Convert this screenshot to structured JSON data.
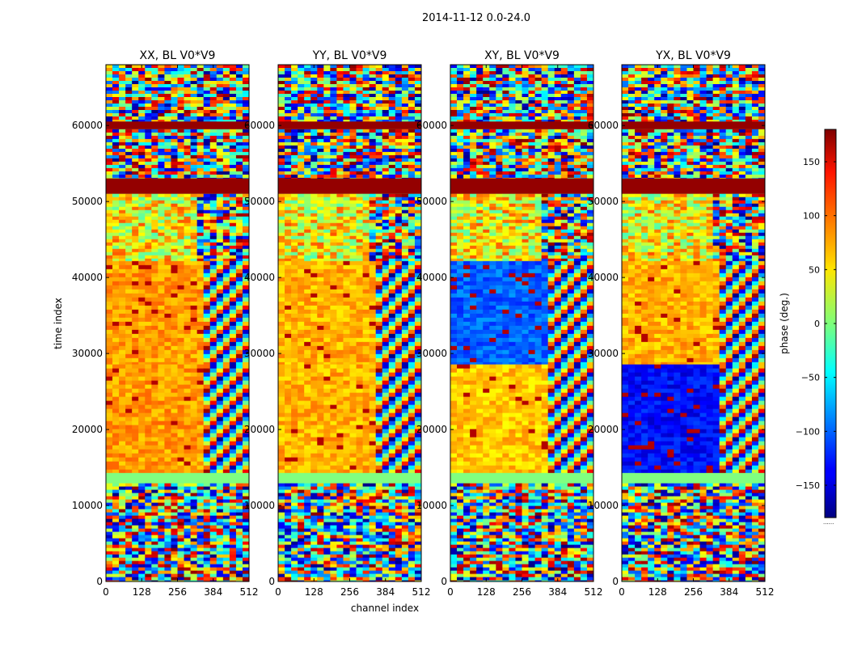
{
  "figure": {
    "suptitle": "2014-11-12 0.0-24.0",
    "xlabel": "channel index",
    "ylabel": "time index"
  },
  "colorbar": {
    "label": "phase (deg.)",
    "colormap": "jet",
    "range": [
      -180,
      180
    ],
    "ticks": [
      150,
      100,
      50,
      0,
      -50,
      -100,
      -150
    ],
    "tick_labels": [
      "150",
      "100",
      "50",
      "0",
      "−50",
      "−100",
      "−150"
    ],
    "offset_text": "......"
  },
  "chart_data": [
    {
      "type": "heatmap",
      "title": "XX, BL V0*V9",
      "xlim": [
        0,
        512
      ],
      "ylim": [
        0,
        68000
      ],
      "x_ticks": [
        0,
        128,
        256,
        384,
        512
      ],
      "y_ticks": [
        0,
        10000,
        20000,
        30000,
        40000,
        50000,
        60000
      ],
      "x_tick_labels": [
        "0",
        "128",
        "256",
        "384",
        "512"
      ],
      "y_tick_labels": [
        "0",
        "10000",
        "20000",
        "30000",
        "40000",
        "50000",
        "60000"
      ],
      "z_label": "phase (deg.)",
      "z_range": [
        -180,
        180
      ]
    },
    {
      "type": "heatmap",
      "title": "YY, BL V0*V9",
      "xlim": [
        0,
        512
      ],
      "ylim": [
        0,
        68000
      ],
      "x_ticks": [
        0,
        128,
        256,
        384,
        512
      ],
      "y_ticks": [
        0,
        10000,
        20000,
        30000,
        40000,
        50000,
        60000
      ],
      "x_tick_labels": [
        "0",
        "128",
        "256",
        "384",
        "512"
      ],
      "y_tick_labels": [
        "0",
        "10000",
        "20000",
        "30000",
        "40000",
        "50000",
        "60000"
      ],
      "z_label": "phase (deg.)",
      "z_range": [
        -180,
        180
      ]
    },
    {
      "type": "heatmap",
      "title": "XY, BL V0*V9",
      "xlim": [
        0,
        512
      ],
      "ylim": [
        0,
        68000
      ],
      "x_ticks": [
        0,
        128,
        256,
        384,
        512
      ],
      "y_ticks": [
        0,
        10000,
        20000,
        30000,
        40000,
        50000,
        60000
      ],
      "x_tick_labels": [
        "0",
        "128",
        "256",
        "384",
        "512"
      ],
      "y_tick_labels": [
        "0",
        "10000",
        "20000",
        "30000",
        "40000",
        "50000",
        "60000"
      ],
      "z_label": "phase (deg.)",
      "z_range": [
        -180,
        180
      ]
    },
    {
      "type": "heatmap",
      "title": "YX, BL V0*V9",
      "xlim": [
        0,
        512
      ],
      "ylim": [
        0,
        68000
      ],
      "x_ticks": [
        0,
        128,
        256,
        384,
        512
      ],
      "y_ticks": [
        0,
        10000,
        20000,
        30000,
        40000,
        50000,
        60000
      ],
      "x_tick_labels": [
        "0",
        "128",
        "256",
        "384",
        "512"
      ],
      "y_tick_labels": [
        "0",
        "10000",
        "20000",
        "30000",
        "40000",
        "50000",
        "60000"
      ],
      "z_label": "phase (deg.)",
      "z_range": [
        -180,
        180
      ]
    }
  ]
}
